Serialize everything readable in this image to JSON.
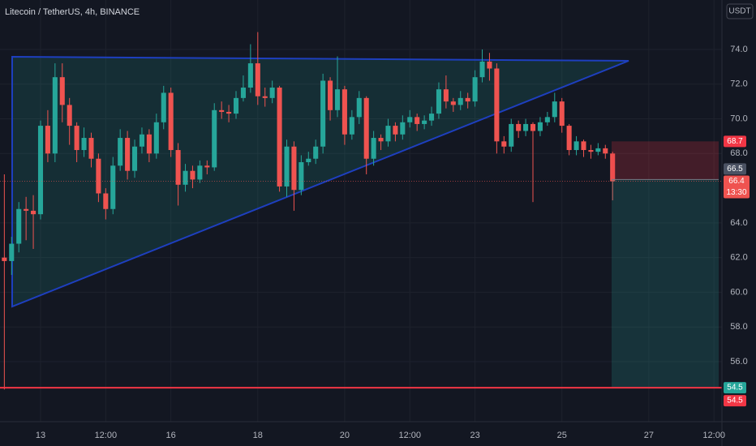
{
  "chart_data": {
    "type": "candlestick",
    "title": "Litecoin / TetherUS, 4h, BINANCE",
    "currency": "USDT",
    "x": [
      1,
      2,
      3,
      4,
      5,
      6,
      7,
      8,
      9,
      10,
      11,
      12,
      13,
      14,
      15,
      16,
      17,
      18,
      19,
      20,
      21,
      22,
      23,
      24,
      25,
      26,
      27,
      28,
      29,
      30,
      31,
      32,
      33,
      34,
      35,
      36,
      37,
      38,
      39,
      40,
      41,
      42,
      43,
      44,
      45,
      46,
      47,
      48,
      49,
      50,
      51,
      52,
      53,
      54,
      55,
      56,
      57,
      58,
      59,
      60,
      61,
      62,
      63,
      64,
      65,
      66,
      67,
      68,
      69,
      70,
      71,
      72,
      73,
      74,
      75,
      76,
      77,
      78,
      79,
      80,
      81,
      82,
      83,
      84,
      85
    ],
    "open": [
      62.0,
      61.8,
      62.8,
      64.8,
      64.7,
      64.5,
      69.6,
      68.0,
      72.4,
      70.8,
      69.6,
      68.2,
      68.9,
      67.7,
      65.7,
      64.8,
      67.3,
      68.9,
      67.0,
      68.4,
      69.1,
      68.0,
      69.8,
      71.5,
      68.2,
      66.2,
      67.0,
      66.5,
      67.3,
      67.2,
      70.5,
      70.4,
      70.3,
      71.2,
      71.8,
      73.2,
      71.3,
      71.2,
      71.8,
      66.1,
      68.4,
      65.9,
      67.5,
      67.7,
      68.4,
      72.2,
      70.5,
      71.7,
      69.1,
      70.1,
      71.2,
      67.7,
      68.9,
      68.7,
      69.6,
      69.1,
      69.8,
      70.1,
      69.7,
      69.9,
      70.3,
      71.7,
      71.0,
      70.8,
      71.2,
      71.0,
      72.4,
      73.3,
      72.9,
      68.7,
      68.4,
      69.7,
      69.3,
      69.7,
      69.3,
      69.8,
      70.1,
      71.0,
      69.6,
      68.2,
      68.7,
      68.2,
      68.1,
      68.3,
      68.0
    ],
    "high": [
      66.8,
      63.2,
      65.2,
      65.5,
      65.6,
      69.9,
      70.5,
      73.2,
      73.2,
      71.2,
      69.8,
      69.5,
      69.2,
      68.0,
      66.0,
      67.8,
      69.4,
      69.3,
      68.8,
      69.5,
      69.4,
      70.3,
      71.9,
      71.8,
      68.6,
      67.4,
      67.3,
      67.6,
      67.6,
      70.9,
      71.0,
      70.8,
      71.6,
      72.5,
      74.3,
      75.0,
      71.8,
      72.2,
      71.9,
      68.8,
      68.7,
      67.9,
      68.1,
      68.8,
      72.6,
      72.4,
      73.6,
      71.9,
      70.5,
      71.6,
      71.3,
      69.3,
      69.1,
      70.0,
      69.8,
      70.2,
      70.5,
      70.3,
      70.2,
      70.7,
      72.1,
      72.5,
      71.2,
      71.6,
      71.5,
      72.8,
      74.0,
      73.8,
      73.2,
      69.0,
      70.0,
      69.9,
      70.0,
      69.8,
      70.1,
      70.4,
      71.5,
      71.2,
      69.7,
      69.0,
      68.8,
      68.5,
      68.6,
      68.5,
      68.1
    ],
    "low": [
      54.4,
      61.0,
      62.3,
      63.0,
      62.5,
      64.2,
      67.5,
      67.5,
      69.8,
      68.5,
      67.5,
      67.8,
      67.2,
      65.2,
      64.2,
      64.5,
      67.0,
      66.5,
      66.6,
      68.0,
      67.5,
      67.7,
      69.4,
      67.8,
      65.0,
      65.8,
      66.0,
      66.3,
      66.8,
      67.0,
      70.0,
      69.8,
      70.0,
      71.0,
      71.5,
      70.8,
      70.7,
      70.9,
      65.8,
      65.5,
      64.7,
      65.6,
      67.3,
      67.4,
      68.0,
      69.9,
      70.1,
      68.5,
      68.8,
      69.7,
      66.8,
      67.3,
      68.2,
      68.4,
      68.7,
      68.8,
      69.5,
      69.3,
      69.4,
      69.6,
      70.0,
      70.6,
      70.4,
      70.5,
      70.6,
      70.7,
      72.1,
      72.2,
      68.0,
      68.0,
      68.1,
      68.9,
      69.0,
      65.2,
      69.0,
      69.6,
      69.8,
      69.2,
      67.9,
      67.9,
      67.8,
      67.7,
      67.9,
      67.7,
      65.3
    ],
    "close": [
      61.8,
      62.8,
      64.8,
      64.7,
      64.5,
      69.6,
      68.0,
      72.4,
      70.8,
      69.6,
      68.2,
      68.9,
      67.7,
      65.7,
      64.8,
      67.3,
      68.9,
      67.0,
      68.4,
      69.1,
      68.0,
      69.8,
      71.5,
      68.2,
      66.2,
      67.0,
      66.5,
      67.3,
      67.2,
      70.5,
      70.4,
      70.3,
      71.2,
      71.8,
      73.2,
      71.3,
      71.2,
      71.8,
      66.1,
      68.4,
      65.9,
      67.5,
      67.7,
      68.4,
      72.2,
      70.5,
      71.7,
      69.1,
      70.1,
      71.2,
      67.7,
      68.9,
      68.7,
      69.6,
      69.1,
      69.8,
      70.1,
      69.7,
      69.9,
      70.3,
      71.7,
      71.0,
      70.8,
      71.2,
      71.0,
      72.4,
      73.3,
      72.9,
      68.7,
      68.4,
      69.7,
      69.3,
      69.7,
      69.3,
      69.8,
      70.1,
      71.0,
      69.6,
      68.2,
      68.7,
      68.2,
      68.1,
      68.3,
      68.0,
      66.4
    ],
    "up_color": "#26a69a",
    "down_color": "#ef5350",
    "xlim": [
      0.4,
      100.1
    ],
    "xticks": [
      {
        "value": 6,
        "label": "13"
      },
      {
        "value": 15,
        "label": "12:00"
      },
      {
        "value": 24,
        "label": "16"
      },
      {
        "value": 36,
        "label": "18"
      },
      {
        "value": 48,
        "label": "20"
      },
      {
        "value": 57,
        "label": "12:00"
      },
      {
        "value": 66,
        "label": "23"
      },
      {
        "value": 78,
        "label": "25"
      },
      {
        "value": 90,
        "label": "27"
      },
      {
        "value": 99,
        "label": "12:00"
      }
    ],
    "ylim": [
      52.54,
      76.85
    ],
    "yticks": [
      {
        "value": 56,
        "label": "56.0"
      },
      {
        "value": 58,
        "label": "58.0"
      },
      {
        "value": 60,
        "label": "60.0"
      },
      {
        "value": 62,
        "label": "62.0"
      },
      {
        "value": 64,
        "label": "64.0"
      },
      {
        "value": 68,
        "label": "68.0"
      },
      {
        "value": 70,
        "label": "70.0"
      },
      {
        "value": 72,
        "label": "72.0"
      },
      {
        "value": 74,
        "label": "74.0"
      }
    ],
    "grid": true,
    "position": {
      "stop": 68.7,
      "entry": 66.5,
      "target": 54.5
    },
    "horizontal_line": 54.5,
    "last_price": 66.4,
    "countdown": "13:30"
  }
}
